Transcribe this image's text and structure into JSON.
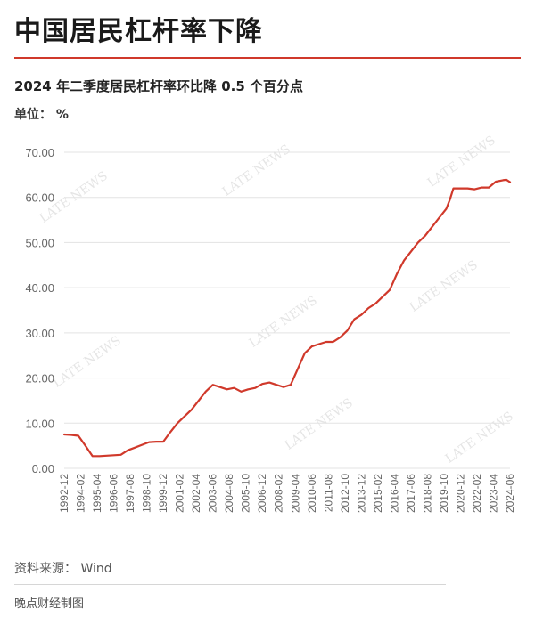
{
  "header": {
    "title": "中国居民杠杆率下降",
    "subtitle": "2024 年二季度居民杠杆率环比降 0.5 个百分点",
    "unit": "单位： %"
  },
  "footer": {
    "source": "资料来源： Wind",
    "credit": "晚点财经制图"
  },
  "watermark": "LATE NEWS",
  "colors": {
    "line": "#d0392b",
    "accent": "#d0392b",
    "grid": "#e3e3e3",
    "axis_text": "#666666"
  },
  "chart_data": {
    "type": "line",
    "title": "中国居民杠杆率下降",
    "subtitle": "2024 年二季度居民杠杆率环比降 0.5 个百分点",
    "xlabel": "",
    "ylabel": "",
    "ylim": [
      0,
      70
    ],
    "yticks": [
      "0.00",
      "10.00",
      "20.00",
      "30.00",
      "40.00",
      "50.00",
      "60.00",
      "70.00"
    ],
    "grid": true,
    "legend": "none",
    "xticks": [
      "1992-12",
      "1994-02",
      "1995-04",
      "1996-06",
      "1997-08",
      "1998-10",
      "1999-12",
      "2001-02",
      "2002-04",
      "2003-06",
      "2004-08",
      "2005-10",
      "2006-12",
      "2008-02",
      "2009-04",
      "2010-06",
      "2011-08",
      "2012-10",
      "2013-12",
      "2015-02",
      "2016-04",
      "2017-06",
      "2018-08",
      "2019-10",
      "2020-12",
      "2022-02",
      "2023-04",
      "2024-06"
    ],
    "x": [
      "1992-12",
      "1993-06",
      "1993-12",
      "1994-06",
      "1994-12",
      "1995-06",
      "1995-12",
      "1996-06",
      "1996-12",
      "1997-06",
      "1997-12",
      "1998-06",
      "1998-12",
      "1999-06",
      "1999-12",
      "2000-06",
      "2000-12",
      "2001-06",
      "2001-12",
      "2002-06",
      "2002-12",
      "2003-06",
      "2003-12",
      "2004-06",
      "2004-12",
      "2005-06",
      "2005-12",
      "2006-06",
      "2006-12",
      "2007-06",
      "2007-12",
      "2008-06",
      "2008-12",
      "2009-06",
      "2009-12",
      "2010-06",
      "2010-12",
      "2011-06",
      "2011-12",
      "2012-06",
      "2012-12",
      "2013-06",
      "2013-12",
      "2014-06",
      "2014-12",
      "2015-06",
      "2015-12",
      "2016-06",
      "2016-12",
      "2017-06",
      "2017-12",
      "2018-06",
      "2018-12",
      "2019-06",
      "2019-12",
      "2020-03",
      "2020-06",
      "2020-12",
      "2021-06",
      "2021-12",
      "2022-06",
      "2022-12",
      "2023-06",
      "2023-12",
      "2024-03",
      "2024-06"
    ],
    "series": [
      {
        "values": [
          7.5,
          7.4,
          7.2,
          5.0,
          2.7,
          2.7,
          2.8,
          2.9,
          3.0,
          4.0,
          4.6,
          5.2,
          5.8,
          5.9,
          5.9,
          8.0,
          10.0,
          11.5,
          13.0,
          15.0,
          17.0,
          18.5,
          18.0,
          17.5,
          17.8,
          17.0,
          17.5,
          17.8,
          18.7,
          19.0,
          18.5,
          18.0,
          18.5,
          22.0,
          25.5,
          27.0,
          27.5,
          28.0,
          28.0,
          29.0,
          30.5,
          33.0,
          34.0,
          35.5,
          36.5,
          38.0,
          39.5,
          43.0,
          46.0,
          48.0,
          50.0,
          51.5,
          53.5,
          55.5,
          57.5,
          59.5,
          62.0,
          62.0,
          62.0,
          61.8,
          62.2,
          62.2,
          63.5,
          63.8,
          63.9,
          63.4
        ]
      }
    ]
  }
}
